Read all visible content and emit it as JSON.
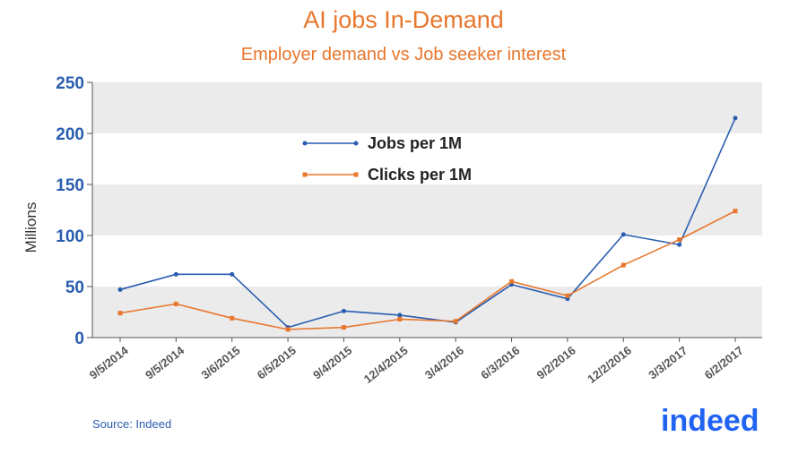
{
  "chart_data": {
    "type": "line",
    "title": "AI jobs In-Demand",
    "subtitle": "Employer demand vs Job seeker interest",
    "xlabel": "",
    "ylabel": "Millions",
    "categories": [
      "9/5/2014",
      "9/5/2014",
      "3/6/2015",
      "6/5/2015",
      "9/4/2015",
      "12/4/2015",
      "3/4/2016",
      "6/3/2016",
      "9/2/2016",
      "12/2/2016",
      "3/3/2017",
      "6/2/2017"
    ],
    "series": [
      {
        "name": "Jobs per 1M",
        "color": "#2a5db0",
        "marker": "circle",
        "values": [
          47,
          62,
          62,
          10,
          26,
          22,
          15,
          52,
          38,
          101,
          91,
          215
        ]
      },
      {
        "name": "Clicks per 1M",
        "color": "#e8772e",
        "marker": "square",
        "values": [
          24,
          33,
          19,
          8,
          10,
          18,
          16,
          55,
          41,
          71,
          96,
          124
        ]
      }
    ],
    "ylim": [
      0,
      250
    ],
    "yticks": [
      0,
      50,
      100,
      150,
      200,
      250
    ],
    "grid": "alternating horizontal bands",
    "legend_placement": "top-left inside plot",
    "band_color": "#ebebeb"
  },
  "footer": {
    "source": "Source: Indeed",
    "logo_text": "indeed",
    "logo_color": "#2164f3"
  }
}
